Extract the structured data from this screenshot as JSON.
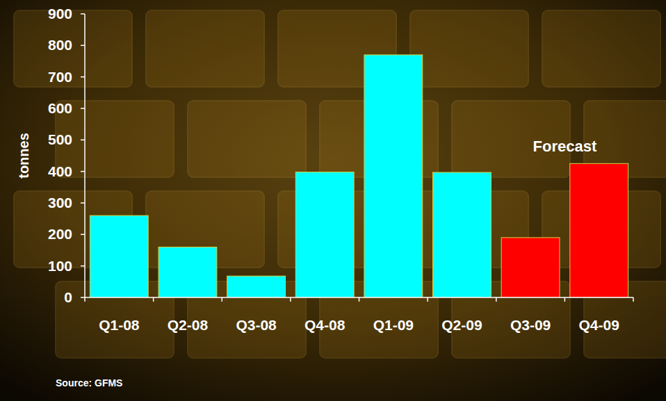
{
  "chart_data": {
    "type": "bar",
    "categories": [
      "Q1-08",
      "Q2-08",
      "Q3-08",
      "Q4-08",
      "Q1-09",
      "Q2-09",
      "Q3-09",
      "Q4-09"
    ],
    "values": [
      260,
      160,
      68,
      398,
      770,
      397,
      190,
      425
    ],
    "colors": [
      "#00ffff",
      "#00ffff",
      "#00ffff",
      "#00ffff",
      "#00ffff",
      "#00ffff",
      "#ff0000",
      "#ff0000"
    ],
    "ylim": [
      0,
      900
    ],
    "yticks": [
      0,
      100,
      200,
      300,
      400,
      500,
      600,
      700,
      800,
      900
    ],
    "grid": false,
    "y_label": "tonnes",
    "annotations": [
      "Forecast"
    ],
    "source": "Source: GFMS"
  }
}
